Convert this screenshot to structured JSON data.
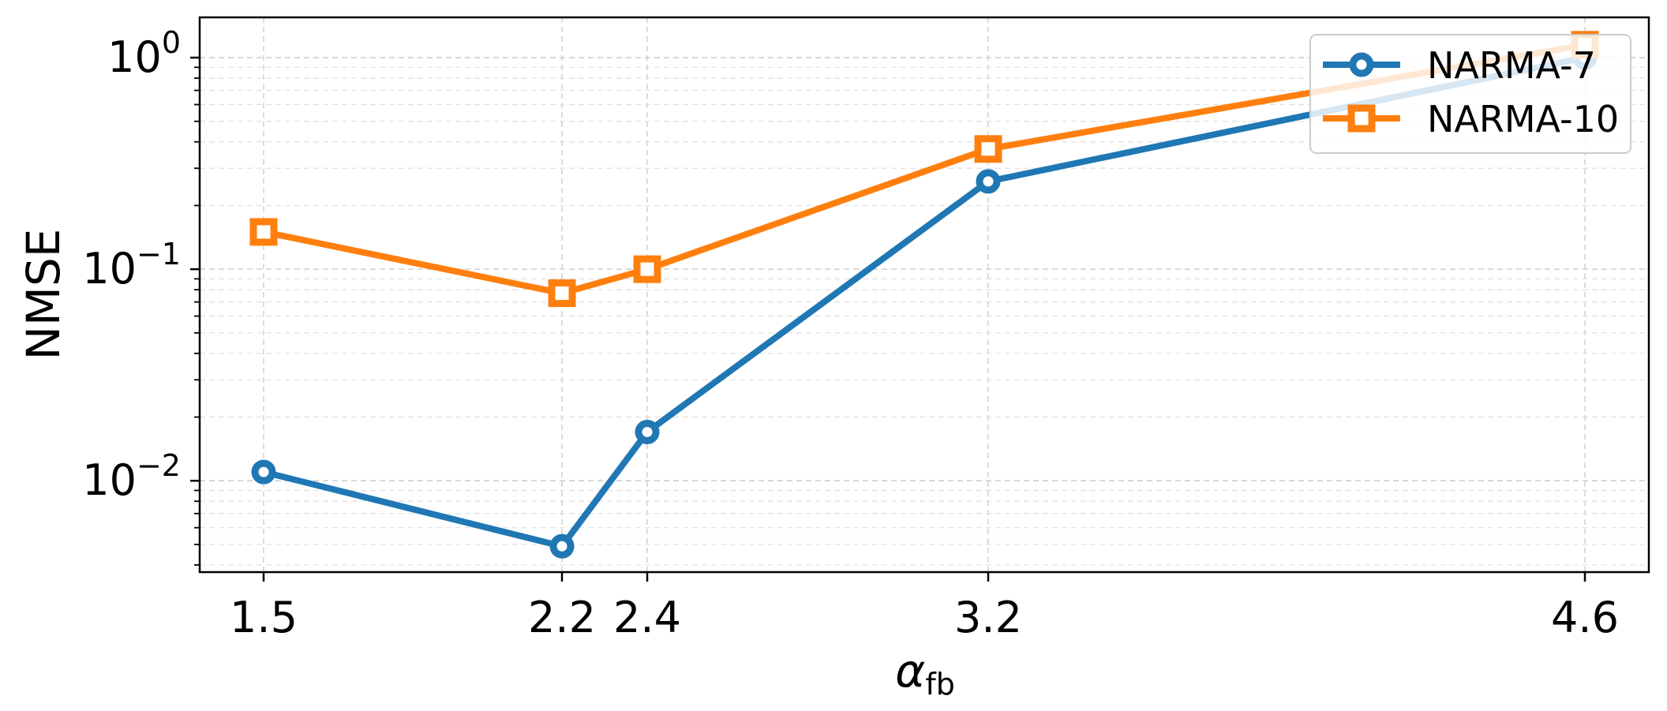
{
  "chart_data": {
    "type": "line",
    "xlabel": "α",
    "xlabel_sub": "fb",
    "ylabel": "NMSE",
    "x": [
      1.5,
      2.2,
      2.4,
      3.2,
      4.6
    ],
    "x_tick_labels": [
      "1.5",
      "2.2",
      "2.4",
      "3.2",
      "4.6"
    ],
    "y_scale": "log",
    "ylim": [
      0.0037,
      1.55
    ],
    "xlim": [
      1.35,
      4.75
    ],
    "y_tick_labels": [
      {
        "base": "10",
        "exp": "0",
        "value": 1
      },
      {
        "base": "10",
        "exp": "−1",
        "value": 0.1
      },
      {
        "base": "10",
        "exp": "−2",
        "value": 0.01
      }
    ],
    "grid": true,
    "legend_position": "top-right",
    "series": [
      {
        "name": "NARMA-7",
        "color": "#1f77b4",
        "marker": "circle",
        "values": [
          0.011,
          0.0049,
          0.017,
          0.26,
          1.0
        ]
      },
      {
        "name": "NARMA-10",
        "color": "#ff7f0e",
        "marker": "square",
        "values": [
          0.15,
          0.077,
          0.1,
          0.37,
          1.15
        ]
      }
    ]
  }
}
